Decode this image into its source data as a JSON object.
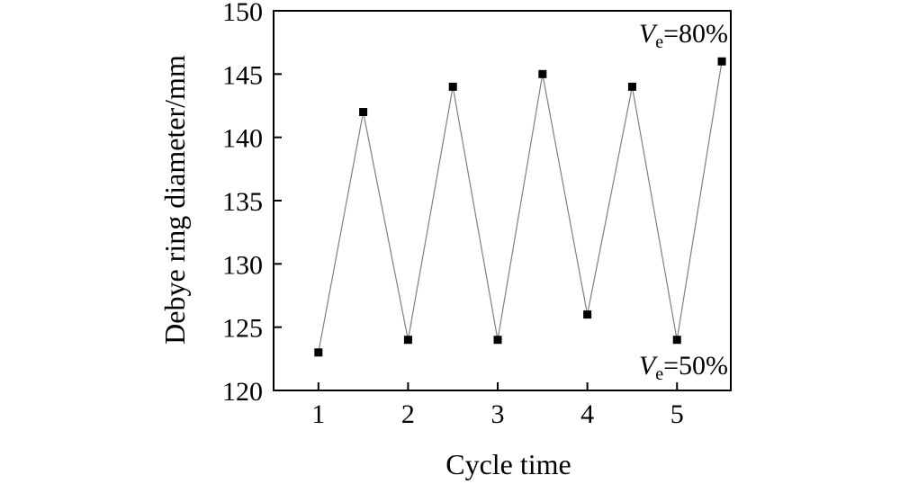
{
  "chart_data": {
    "type": "line",
    "xlabel": "Cycle time",
    "ylabel": "Debye ring diameter/mm",
    "xlim": [
      0.5,
      5.6
    ],
    "ylim": [
      120,
      150
    ],
    "xticks": [
      1,
      2,
      3,
      4,
      5
    ],
    "yticks": [
      120,
      125,
      130,
      135,
      140,
      145,
      150
    ],
    "grid": false,
    "series": [
      {
        "x": [
          1,
          1.5,
          2,
          2.5,
          3,
          3.5,
          4,
          4.5,
          5,
          5.5
        ],
        "y": [
          123,
          142,
          124,
          144,
          124,
          145,
          126,
          144,
          124,
          146
        ],
        "marker": "square",
        "line_color": "#808080",
        "marker_color": "#000000"
      }
    ],
    "annotations": [
      {
        "prefix": "V",
        "sub": "e",
        "suffix": "=80%",
        "anchor": "top-right"
      },
      {
        "prefix": "V",
        "sub": "e",
        "suffix": "=50%",
        "anchor": "bottom-right"
      }
    ]
  }
}
